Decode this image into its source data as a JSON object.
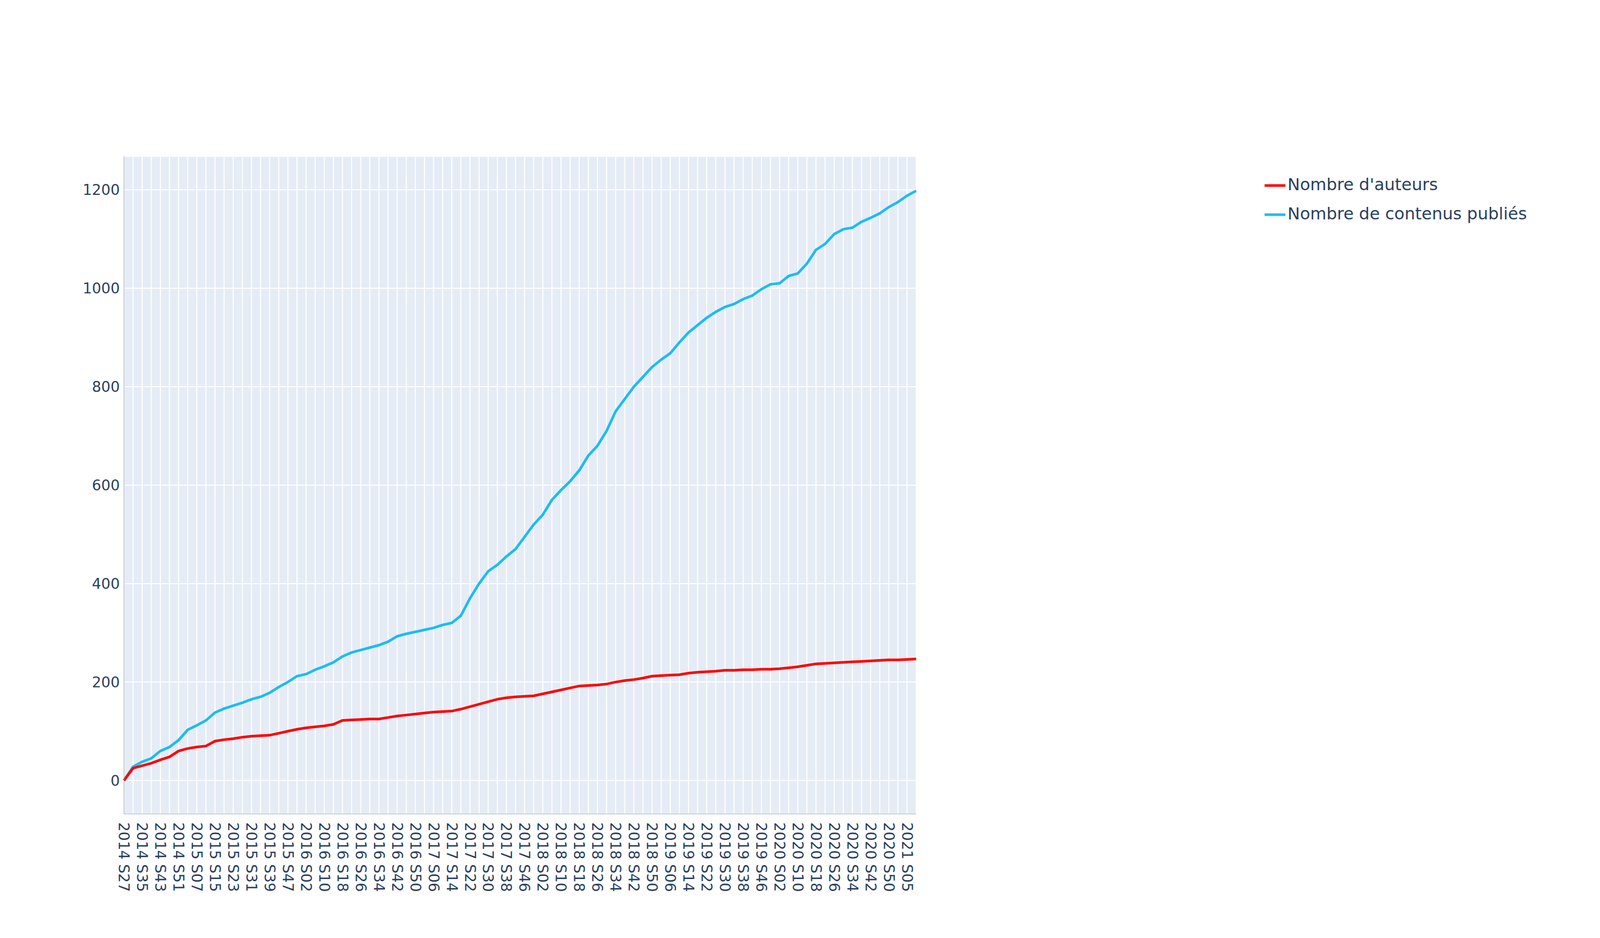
{
  "chart_data": {
    "type": "line",
    "categories": [
      "2014 S27",
      null,
      "2014 S35",
      null,
      "2014 S43",
      null,
      "2014 S51",
      null,
      "2015 S07",
      null,
      "2015 S15",
      null,
      "2015 S23",
      null,
      "2015 S31",
      null,
      "2015 S39",
      null,
      "2015 S47",
      null,
      "2016 S02",
      null,
      "2016 S10",
      null,
      "2016 S18",
      null,
      "2016 S26",
      null,
      "2016 S34",
      null,
      "2016 S42",
      null,
      "2016 S50",
      null,
      "2017 S06",
      null,
      "2017 S14",
      null,
      "2017 S22",
      null,
      "2017 S30",
      null,
      "2017 S38",
      null,
      "2017 S46",
      null,
      "2018 S02",
      null,
      "2018 S10",
      null,
      "2018 S18",
      null,
      "2018 S26",
      null,
      "2018 S34",
      null,
      "2018 S42",
      null,
      "2018 S50",
      null,
      "2019 S06",
      null,
      "2019 S14",
      null,
      "2019 S22",
      null,
      "2019 S30",
      null,
      "2019 S38",
      null,
      "2019 S46",
      null,
      "2020 S02",
      null,
      "2020 S10",
      null,
      "2020 S18",
      null,
      "2020 S26",
      null,
      "2020 S34",
      null,
      "2020 S42",
      null,
      "2020 S50",
      null,
      "2021 S05",
      null
    ],
    "series": [
      {
        "name": "Nombre de contenus publiés",
        "color": "#1cbcf0",
        "values": [
          0,
          28,
          38,
          45,
          60,
          68,
          82,
          103,
          112,
          122,
          138,
          146,
          152,
          158,
          165,
          170,
          178,
          190,
          200,
          212,
          216,
          225,
          232,
          240,
          252,
          260,
          265,
          270,
          275,
          282,
          293,
          298,
          302,
          306,
          310,
          316,
          320,
          335,
          370,
          400,
          425,
          438,
          455,
          470,
          495,
          520,
          540,
          570,
          590,
          608,
          630,
          660,
          680,
          710,
          750,
          775,
          800,
          820,
          840,
          855,
          868,
          890,
          910,
          925,
          940,
          952,
          962,
          968,
          978,
          985,
          998,
          1008,
          1010,
          1025,
          1030,
          1050,
          1078,
          1090,
          1110,
          1120,
          1123,
          1135,
          1143,
          1152,
          1165,
          1175,
          1188,
          1198
        ]
      },
      {
        "name": "Nombre d'auteurs",
        "color": "#ff0000",
        "values": [
          0,
          25,
          30,
          35,
          42,
          48,
          60,
          65,
          68,
          70,
          80,
          83,
          85,
          88,
          90,
          91,
          92,
          96,
          100,
          104,
          107,
          109,
          111,
          114,
          122,
          123,
          124,
          125,
          125,
          128,
          131,
          133,
          135,
          137,
          139,
          140,
          141,
          145,
          150,
          155,
          160,
          165,
          168,
          170,
          171,
          172,
          176,
          180,
          184,
          188,
          192,
          193,
          194,
          196,
          200,
          203,
          205,
          208,
          212,
          213,
          214,
          215,
          218,
          220,
          221,
          222,
          224,
          224,
          225,
          225,
          226,
          226,
          227,
          229,
          231,
          234,
          237,
          238,
          239,
          240,
          241,
          242,
          243,
          244,
          245,
          245,
          246,
          247
        ]
      }
    ],
    "ylim": [
      -68,
      1268
    ],
    "yticks": [
      0,
      200,
      400,
      600,
      800,
      1000,
      1200
    ],
    "grid": true,
    "legend": "right"
  }
}
